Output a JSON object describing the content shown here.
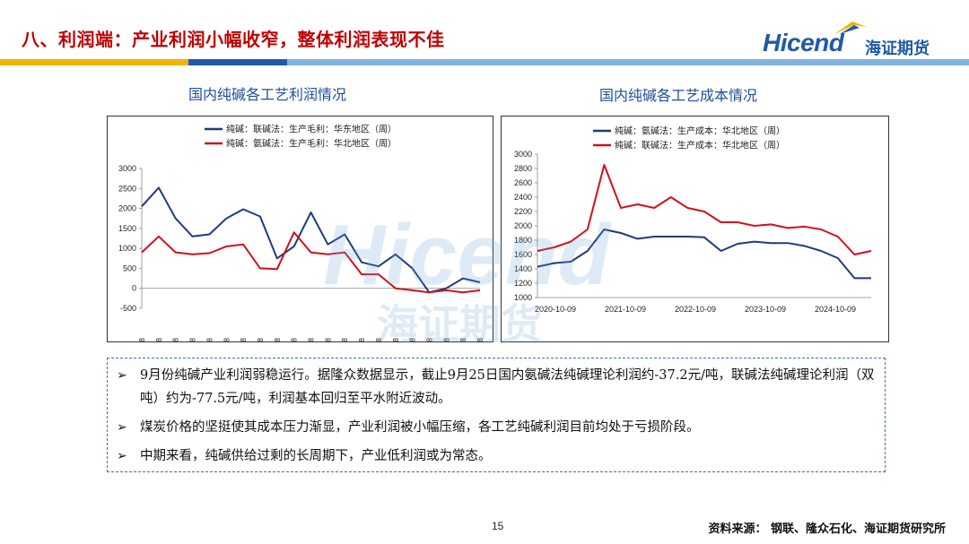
{
  "header": {
    "title": "八、利润端：产业利润小幅收窄，整体利润表现不佳",
    "logo_en": "Hicend",
    "logo_cn": "海证期货",
    "bar_colors": [
      "#f0b400",
      "#1f5aa6",
      "#7fb3e0"
    ]
  },
  "charts": [
    {
      "title": "国内纯碱各工艺利润情况"
    },
    {
      "title": "国内纯碱各工艺成本情况"
    }
  ],
  "chart_data": [
    {
      "type": "line",
      "title": "国内纯碱各工艺利润情况",
      "ylim": [
        -500,
        3000
      ],
      "yticks": [
        -500,
        0,
        500,
        1000,
        1500,
        2000,
        2500,
        3000
      ],
      "x": [
        "2022-04-08",
        "2022-06-08",
        "2022-08-08",
        "2022-10-08",
        "2022-12-08",
        "2023-02-08",
        "2023-04-08",
        "2023-06-08",
        "2023-08-08",
        "2023-10-08",
        "2023-12-08",
        "2024-02-08",
        "2024-04-08",
        "2024-06-08",
        "2024-08-08",
        "2024-10-08",
        "2024-12-08",
        "2025-02-08",
        "2025-04-08",
        "2025-06-08",
        "2025-08-08"
      ],
      "series": [
        {
          "name": "纯碱：联碱法：生产毛利：华东地区（周）",
          "color": "#1f3b7a",
          "values": [
            2050,
            2520,
            1750,
            1300,
            1350,
            1750,
            1980,
            1800,
            750,
            1050,
            1900,
            1100,
            1350,
            650,
            550,
            850,
            500,
            -100,
            0,
            250,
            150
          ]
        },
        {
          "name": "纯碱：氨碱法：生产毛利：华北地区（周）",
          "color": "#d0111b",
          "values": [
            900,
            1300,
            900,
            850,
            880,
            1050,
            1100,
            500,
            480,
            1400,
            900,
            850,
            900,
            350,
            350,
            0,
            -50,
            -100,
            -50,
            -100,
            -50
          ]
        }
      ]
    },
    {
      "type": "line",
      "title": "国内纯碱各工艺成本情况",
      "ylim": [
        1000,
        3000
      ],
      "yticks": [
        1000,
        1200,
        1400,
        1600,
        1800,
        2000,
        2200,
        2400,
        2600,
        2800,
        3000
      ],
      "xticks": [
        "2020-10-09",
        "2021-10-09",
        "2022-10-09",
        "2023-10-09",
        "2024-10-09"
      ],
      "x": [
        "2020-10",
        "2021-01",
        "2021-04",
        "2021-07",
        "2021-10",
        "2022-01",
        "2022-04",
        "2022-07",
        "2022-10",
        "2023-01",
        "2023-04",
        "2023-07",
        "2023-10",
        "2024-01",
        "2024-04",
        "2024-07",
        "2024-10",
        "2025-01",
        "2025-04",
        "2025-07",
        "2025-09"
      ],
      "series": [
        {
          "name": "纯碱：氨碱法：生产成本：华北地区（周）",
          "color": "#1f3b7a",
          "values": [
            1430,
            1480,
            1500,
            1650,
            1950,
            1900,
            1820,
            1850,
            1850,
            1850,
            1840,
            1650,
            1750,
            1780,
            1760,
            1760,
            1720,
            1650,
            1550,
            1270,
            1270
          ]
        },
        {
          "name": "纯碱：联碱法：生产成本：华北地区（周）",
          "color": "#d0111b",
          "values": [
            1650,
            1700,
            1780,
            1950,
            2850,
            2250,
            2300,
            2250,
            2400,
            2250,
            2200,
            2050,
            2050,
            2000,
            2020,
            1970,
            1990,
            1950,
            1850,
            1600,
            1650
          ]
        }
      ]
    }
  ],
  "bullets": [
    "9月份纯碱产业利润弱稳运行。据隆众数据显示，截止9月25日国内氨碱法纯碱理论利润约-37.2元/吨，联碱法纯碱理论利润（双吨）约为-77.5元/吨，利润基本回归至平水附近波动。",
    "煤炭价格的坚挺使其成本压力渐显，产业利润被小幅压缩，各工艺纯碱利润目前均处于亏损阶段。",
    "中期来看，纯碱供给过剩的长周期下，产业低利润或为常态。"
  ],
  "footer": {
    "page_number": "15",
    "source": "资料来源：  钢联、隆众石化、海证期货研究所"
  }
}
